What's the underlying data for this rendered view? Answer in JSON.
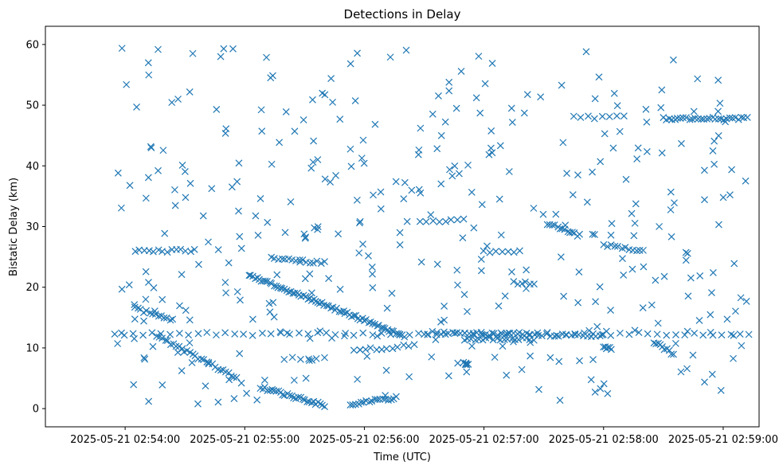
{
  "chart_data": {
    "type": "scatter",
    "title": "Detections in Delay",
    "xlabel": "Time (UTC)",
    "ylabel": "Bistatic Delay (km)",
    "x_unit": "seconds after 2025-05-21 02:54:00 UTC",
    "xlim": [
      -40,
      318
    ],
    "ylim": [
      -3,
      63
    ],
    "grid": false,
    "marker": "x",
    "color": "#1f77b4",
    "x_ticks": [
      {
        "value": 0,
        "label": "2025-05-21 02:54:00"
      },
      {
        "value": 60,
        "label": "2025-05-21 02:55:00"
      },
      {
        "value": 120,
        "label": "2025-05-21 02:56:00"
      },
      {
        "value": 180,
        "label": "2025-05-21 02:57:00"
      },
      {
        "value": 240,
        "label": "2025-05-21 02:58:00"
      },
      {
        "value": 300,
        "label": "2025-05-21 02:59:00"
      }
    ],
    "y_ticks": [
      {
        "value": 0,
        "label": "0"
      },
      {
        "value": 10,
        "label": "10"
      },
      {
        "value": 20,
        "label": "20"
      },
      {
        "value": 30,
        "label": "30"
      },
      {
        "value": 40,
        "label": "40"
      },
      {
        "value": 50,
        "label": "50"
      },
      {
        "value": 60,
        "label": "60"
      }
    ],
    "tracks": [
      {
        "from": [
          5,
          16.5
        ],
        "to": [
          24,
          14.5
        ],
        "n": 14
      },
      {
        "from": [
          -5,
          12.3
        ],
        "to": [
          313,
          12.3
        ],
        "n": 70
      },
      {
        "from": [
          5,
          26.0
        ],
        "to": [
          35,
          26.0
        ],
        "n": 14
      },
      {
        "from": [
          16,
          12.0
        ],
        "to": [
          56,
          5.0
        ],
        "n": 30
      },
      {
        "from": [
          62,
          22.0
        ],
        "to": [
          140,
          12.0
        ],
        "n": 75
      },
      {
        "from": [
          75,
          24.8
        ],
        "to": [
          100,
          24.0
        ],
        "n": 15
      },
      {
        "from": [
          68,
          3.5
        ],
        "to": [
          100,
          0.5
        ],
        "n": 30
      },
      {
        "from": [
          113,
          0.7
        ],
        "to": [
          136,
          1.8
        ],
        "n": 18
      },
      {
        "from": [
          150,
          12.5
        ],
        "to": [
          240,
          12.0
        ],
        "n": 45
      },
      {
        "from": [
          170,
          11.5
        ],
        "to": [
          205,
          11.5
        ],
        "n": 20
      },
      {
        "from": [
          212,
          30.5
        ],
        "to": [
          228,
          28.5
        ],
        "n": 14
      },
      {
        "from": [
          240,
          27.0
        ],
        "to": [
          260,
          26.0
        ],
        "n": 12
      },
      {
        "from": [
          270,
          47.8
        ],
        "to": [
          312,
          47.8
        ],
        "n": 30
      },
      {
        "from": [
          225,
          48.0
        ],
        "to": [
          250,
          48.0
        ],
        "n": 8
      },
      {
        "from": [
          265,
          11.0
        ],
        "to": [
          275,
          9.0
        ],
        "n": 10
      },
      {
        "from": [
          115,
          9.5
        ],
        "to": [
          145,
          10.5
        ],
        "n": 12
      },
      {
        "from": [
          148,
          31.0
        ],
        "to": [
          170,
          31.0
        ],
        "n": 8
      },
      {
        "from": [
          180,
          25.8
        ],
        "to": [
          195,
          25.8
        ],
        "n": 6
      },
      {
        "from": [
          195,
          20.8
        ],
        "to": [
          205,
          20.5
        ],
        "n": 6
      },
      {
        "from": [
          80,
          8.3
        ],
        "to": [
          100,
          8.3
        ],
        "n": 6
      },
      {
        "from": [
          170,
          7.4
        ],
        "to": [
          172,
          7.4
        ],
        "n": 6
      },
      {
        "from": [
          240,
          10.0
        ],
        "to": [
          244,
          10.0
        ],
        "n": 6
      }
    ],
    "background_noise": {
      "count": 380,
      "x_range": [
        -4,
        314
      ],
      "y_range": [
        0.5,
        59.5
      ],
      "seed": 7
    }
  }
}
